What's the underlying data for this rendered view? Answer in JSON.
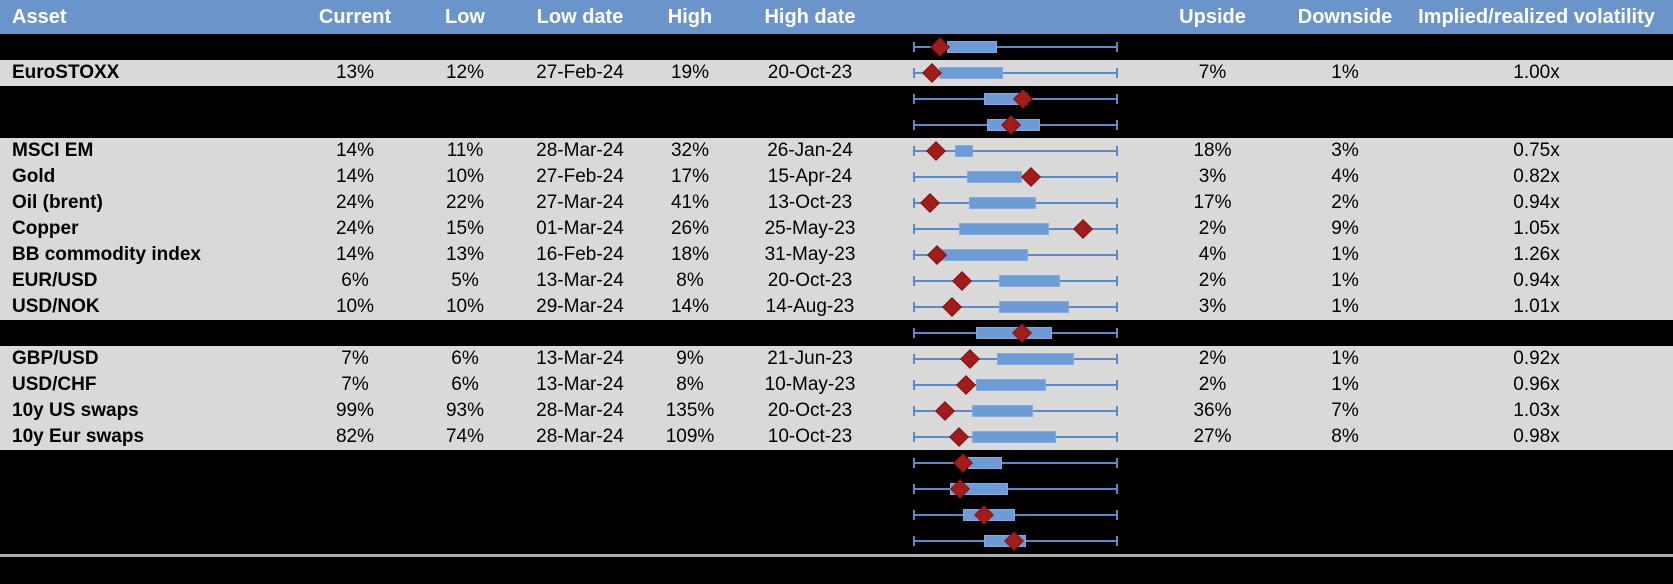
{
  "header": {
    "asset": "Asset",
    "current": "Current",
    "low": "Low",
    "low_date": "Low date",
    "high": "High",
    "high_date": "High date",
    "range_chart": "",
    "upside": "Upside",
    "downside": "Downside",
    "implied": "Implied/realized volatility"
  },
  "colors": {
    "header_bg": "#6B94CA",
    "row_gray": "#D9D9D9",
    "row_black": "#000000",
    "whisker": "#5B8AC6",
    "box_fill": "#6D9BD5",
    "box_border": "#86AADB",
    "diamond": "#A21C1C",
    "diamond_border": "#7E1113",
    "separator": "#ABABAB"
  },
  "rows": [
    {
      "type": "chart",
      "box": [
        0.167,
        0.409
      ],
      "marker": 0.132
    },
    {
      "type": "data",
      "asset": "EuroSTOXX",
      "current": "13%",
      "low": "12%",
      "low_date": "27-Feb-24",
      "high": "19%",
      "high_date": "20-Oct-23",
      "upside": "7%",
      "downside": "1%",
      "implied": "1.00x",
      "box": [
        0.127,
        0.441
      ],
      "marker": 0.093
    },
    {
      "type": "chart",
      "box": [
        0.346,
        0.561
      ],
      "marker": 0.535
    },
    {
      "type": "chart",
      "box": [
        0.359,
        0.618
      ],
      "marker": 0.477
    },
    {
      "type": "data",
      "asset": "MSCI EM",
      "current": "14%",
      "low": "11%",
      "low_date": "28-Mar-24",
      "high": "32%",
      "high_date": "26-Jan-24",
      "upside": "18%",
      "downside": "3%",
      "implied": "0.75x",
      "box": [
        0.203,
        0.292
      ],
      "marker": 0.114
    },
    {
      "type": "data",
      "asset": "Gold",
      "current": "14%",
      "low": "10%",
      "low_date": "27-Feb-24",
      "high": "17%",
      "high_date": "15-Apr-24",
      "upside": "3%",
      "downside": "4%",
      "implied": "0.82x",
      "box": [
        0.265,
        0.534
      ],
      "marker": 0.575
    },
    {
      "type": "data",
      "asset": "Oil (brent)",
      "current": "24%",
      "low": "22%",
      "low_date": "27-Mar-24",
      "high": "41%",
      "high_date": "13-Oct-23",
      "upside": "17%",
      "downside": "2%",
      "implied": "0.94x",
      "box": [
        0.273,
        0.6
      ],
      "marker": 0.085
    },
    {
      "type": "data",
      "asset": "Copper",
      "current": "24%",
      "low": "15%",
      "low_date": "01-Mar-24",
      "high": "26%",
      "high_date": "25-May-23",
      "upside": "2%",
      "downside": "9%",
      "implied": "1.05x",
      "box": [
        0.224,
        0.662
      ],
      "marker": 0.828
    },
    {
      "type": "data",
      "asset": "BB commodity index",
      "current": "14%",
      "low": "13%",
      "low_date": "16-Feb-24",
      "high": "18%",
      "high_date": "31-May-23",
      "upside": "4%",
      "downside": "1%",
      "implied": "1.26x",
      "box": [
        0.118,
        0.559
      ],
      "marker": 0.118
    },
    {
      "type": "data",
      "asset": "EUR/USD",
      "current": "6%",
      "low": "5%",
      "low_date": "13-Mar-24",
      "high": "8%",
      "high_date": "20-Oct-23",
      "upside": "2%",
      "downside": "1%",
      "implied": "0.94x",
      "box": [
        0.419,
        0.717
      ],
      "marker": 0.239
    },
    {
      "type": "data",
      "asset": "USD/NOK",
      "current": "10%",
      "low": "10%",
      "low_date": "29-Mar-24",
      "high": "14%",
      "high_date": "14-Aug-23",
      "upside": "3%",
      "downside": "1%",
      "implied": "1.01x",
      "box": [
        0.419,
        0.761
      ],
      "marker": 0.19
    },
    {
      "type": "chart",
      "box": [
        0.309,
        0.679
      ],
      "marker": 0.532
    },
    {
      "type": "data",
      "asset": "GBP/USD",
      "current": "7%",
      "low": "6%",
      "low_date": "13-Mar-24",
      "high": "9%",
      "high_date": "21-Jun-23",
      "upside": "2%",
      "downside": "1%",
      "implied": "0.92x",
      "box": [
        0.41,
        0.785
      ],
      "marker": 0.28
    },
    {
      "type": "data",
      "asset": "USD/CHF",
      "current": "7%",
      "low": "6%",
      "low_date": "13-Mar-24",
      "high": "8%",
      "high_date": "10-May-23",
      "upside": "2%",
      "downside": "1%",
      "implied": "0.96x",
      "box": [
        0.309,
        0.651
      ],
      "marker": 0.259
    },
    {
      "type": "data",
      "asset": "10y US swaps",
      "current": "99%",
      "low": "93%",
      "low_date": "28-Mar-24",
      "high": "135%",
      "high_date": "20-Oct-23",
      "upside": "36%",
      "downside": "7%",
      "implied": "1.03x",
      "box": [
        0.288,
        0.586
      ],
      "marker": 0.158
    },
    {
      "type": "data",
      "asset": "10y Eur swaps",
      "current": "82%",
      "low": "74%",
      "low_date": "28-Mar-24",
      "high": "109%",
      "high_date": "10-Oct-23",
      "upside": "27%",
      "downside": "8%",
      "implied": "0.98x",
      "box": [
        0.29,
        0.7
      ],
      "marker": 0.222
    },
    {
      "type": "chart",
      "box": [
        0.27,
        0.434
      ],
      "marker": 0.242
    },
    {
      "type": "chart",
      "box": [
        0.182,
        0.465
      ],
      "marker": 0.228
    },
    {
      "type": "chart",
      "box": [
        0.244,
        0.496
      ],
      "marker": 0.348
    },
    {
      "type": "chart",
      "box": [
        0.345,
        0.553
      ],
      "marker": 0.491
    }
  ],
  "chart_data": {
    "type": "boxplot",
    "orientation": "horizontal",
    "description": "Per-row 1-year volatility range box-whisker charts; whiskers span the low-to-high range (normalized 0-1), box marks the interquartile range, red diamond marks the current level",
    "series": [
      {
        "label": "EuroSTOXX",
        "whisker": [
          0,
          1
        ],
        "box": [
          0.127,
          0.441
        ],
        "current_marker": 0.093
      },
      {
        "label": "MSCI EM",
        "whisker": [
          0,
          1
        ],
        "box": [
          0.203,
          0.292
        ],
        "current_marker": 0.114
      },
      {
        "label": "Gold",
        "whisker": [
          0,
          1
        ],
        "box": [
          0.265,
          0.534
        ],
        "current_marker": 0.575
      },
      {
        "label": "Oil (brent)",
        "whisker": [
          0,
          1
        ],
        "box": [
          0.273,
          0.6
        ],
        "current_marker": 0.085
      },
      {
        "label": "Copper",
        "whisker": [
          0,
          1
        ],
        "box": [
          0.224,
          0.662
        ],
        "current_marker": 0.828
      },
      {
        "label": "BB commodity index",
        "whisker": [
          0,
          1
        ],
        "box": [
          0.118,
          0.559
        ],
        "current_marker": 0.118
      },
      {
        "label": "EUR/USD",
        "whisker": [
          0,
          1
        ],
        "box": [
          0.419,
          0.717
        ],
        "current_marker": 0.239
      },
      {
        "label": "USD/NOK",
        "whisker": [
          0,
          1
        ],
        "box": [
          0.419,
          0.761
        ],
        "current_marker": 0.19
      },
      {
        "label": "GBP/USD",
        "whisker": [
          0,
          1
        ],
        "box": [
          0.41,
          0.785
        ],
        "current_marker": 0.28
      },
      {
        "label": "USD/CHF",
        "whisker": [
          0,
          1
        ],
        "box": [
          0.309,
          0.651
        ],
        "current_marker": 0.259
      },
      {
        "label": "10y US swaps",
        "whisker": [
          0,
          1
        ],
        "box": [
          0.288,
          0.586
        ],
        "current_marker": 0.158
      },
      {
        "label": "10y Eur swaps",
        "whisker": [
          0,
          1
        ],
        "box": [
          0.29,
          0.7
        ],
        "current_marker": 0.222
      }
    ]
  }
}
